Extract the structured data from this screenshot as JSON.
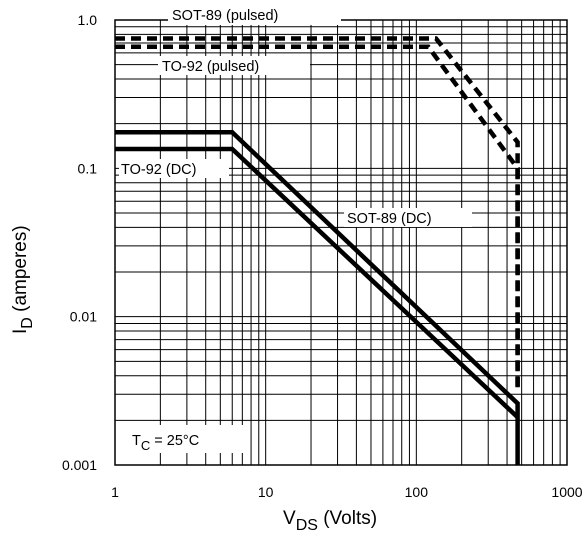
{
  "chart_data": {
    "type": "line",
    "title": "",
    "xlabel": "VDS (Volts)",
    "xlabel_main": "V",
    "xlabel_sub": "DS",
    "xlabel_rest": " (Volts)",
    "ylabel": "ID (amperes)",
    "ylabel_main": "I",
    "ylabel_sub": "D",
    "ylabel_rest": " (amperes)",
    "xscale": "log",
    "yscale": "log",
    "xlim": [
      1,
      1000
    ],
    "ylim": [
      0.001,
      1.0
    ],
    "grid": true,
    "x_ticks": [
      "1",
      "10",
      "100",
      "1000"
    ],
    "y_ticks": [
      "0.001",
      "0.01",
      "0.1",
      "1.0"
    ],
    "series": [
      {
        "name": "SOT-89 (pulsed)",
        "style": "dashed",
        "x": [
          1,
          135,
          470,
          470
        ],
        "y": [
          0.75,
          0.75,
          0.15,
          0.0032
        ]
      },
      {
        "name": "TO-92 (pulsed)",
        "style": "dashed",
        "x": [
          1,
          120,
          470,
          470
        ],
        "y": [
          0.66,
          0.66,
          0.1,
          0.0032
        ]
      },
      {
        "name": "SOT-89 (DC)",
        "style": "solid",
        "x": [
          1,
          6,
          470,
          470
        ],
        "y": [
          0.175,
          0.175,
          0.0026,
          0.001
        ]
      },
      {
        "name": "TO-92 (DC)",
        "style": "solid",
        "x": [
          1,
          6,
          470
        ],
        "y": [
          0.135,
          0.135,
          0.0021
        ]
      }
    ],
    "annotations": {
      "condition_main": "T",
      "condition_sub": "C",
      "condition_rest": " = 25°C"
    }
  }
}
